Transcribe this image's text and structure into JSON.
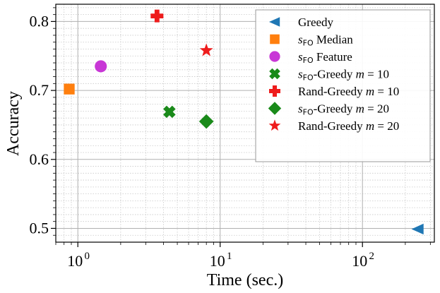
{
  "chart_data": {
    "type": "scatter",
    "xscale": "log",
    "xlim": [
      0.7,
      320
    ],
    "ylim": [
      0.48,
      0.825
    ],
    "xlabel": "Time (sec.)",
    "ylabel": "Accuracy",
    "grid": true,
    "legend_position": "top-right",
    "xticks": [
      {
        "value": 1,
        "base": "10",
        "exp": "0"
      },
      {
        "value": 10,
        "base": "10",
        "exp": "1"
      },
      {
        "value": 100,
        "base": "10",
        "exp": "2"
      }
    ],
    "yticks": [
      {
        "value": 0.5,
        "label": "0.5"
      },
      {
        "value": 0.6,
        "label": "0.6"
      },
      {
        "value": 0.7,
        "label": "0.7"
      },
      {
        "value": 0.8,
        "label": "0.8"
      }
    ],
    "series": [
      {
        "name": "Greedy",
        "marker": "triangle-left",
        "color": "#1f77b4",
        "points": [
          {
            "x": 245,
            "y": 0.499
          }
        ]
      },
      {
        "name": "s_FO Median",
        "marker": "square",
        "color": "#ff7f0e",
        "points": [
          {
            "x": 0.87,
            "y": 0.702
          }
        ]
      },
      {
        "name": "s_FO Feature",
        "marker": "circle",
        "color": "#c837d6",
        "points": [
          {
            "x": 1.45,
            "y": 0.735
          }
        ]
      },
      {
        "name": "s_FO-Greedy m=10",
        "marker": "x-thick",
        "color": "#1a8a1a",
        "points": [
          {
            "x": 4.4,
            "y": 0.669
          }
        ]
      },
      {
        "name": "Rand-Greedy m=10",
        "marker": "plus-thick",
        "color": "#ee1c1c",
        "points": [
          {
            "x": 3.6,
            "y": 0.808
          }
        ]
      },
      {
        "name": "s_FO-Greedy m=20",
        "marker": "diamond",
        "color": "#1a8a1a",
        "points": [
          {
            "x": 8.0,
            "y": 0.655
          }
        ]
      },
      {
        "name": "Rand-Greedy m=20",
        "marker": "star",
        "color": "#ee1c1c",
        "points": [
          {
            "x": 8.0,
            "y": 0.758
          }
        ]
      }
    ],
    "legend": [
      {
        "parts": [
          {
            "t": "Greedy",
            "style": "normal"
          }
        ]
      },
      {
        "parts": [
          {
            "t": "s",
            "style": "it"
          },
          {
            "t": "FO",
            "style": "sub"
          },
          {
            "t": " Median",
            "style": "normal"
          }
        ]
      },
      {
        "parts": [
          {
            "t": "s",
            "style": "it"
          },
          {
            "t": "FO",
            "style": "sub"
          },
          {
            "t": " Feature",
            "style": "normal"
          }
        ]
      },
      {
        "parts": [
          {
            "t": "s",
            "style": "it"
          },
          {
            "t": "FO",
            "style": "sub"
          },
          {
            "t": "-Greedy ",
            "style": "normal"
          },
          {
            "t": "m",
            "style": "it"
          },
          {
            "t": " = 10",
            "style": "normal"
          }
        ]
      },
      {
        "parts": [
          {
            "t": "Rand-Greedy ",
            "style": "normal"
          },
          {
            "t": "m",
            "style": "it"
          },
          {
            "t": " = 10",
            "style": "normal"
          }
        ]
      },
      {
        "parts": [
          {
            "t": "s",
            "style": "it"
          },
          {
            "t": "FO",
            "style": "sub"
          },
          {
            "t": "-Greedy ",
            "style": "normal"
          },
          {
            "t": "m",
            "style": "it"
          },
          {
            "t": " = 20",
            "style": "normal"
          }
        ]
      },
      {
        "parts": [
          {
            "t": "Rand-Greedy ",
            "style": "normal"
          },
          {
            "t": "m",
            "style": "it"
          },
          {
            "t": " = 20",
            "style": "normal"
          }
        ]
      }
    ]
  }
}
